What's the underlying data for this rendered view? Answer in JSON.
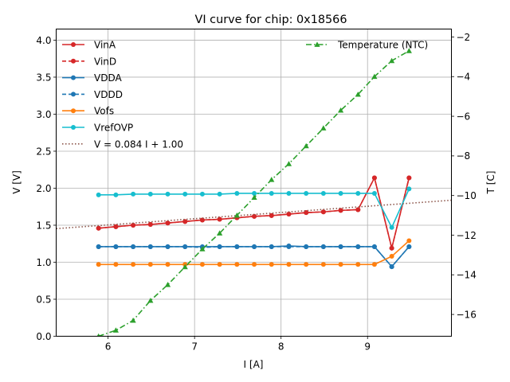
{
  "chart_data": {
    "type": "line",
    "title": "VI curve for chip: 0x18566",
    "xlabel": "I [A]",
    "ylabel": "V [V]",
    "y2label": "T [C]",
    "xlim": [
      5.4,
      9.97
    ],
    "ylim": [
      0.0,
      4.15
    ],
    "y2lim": [
      -17.1,
      -1.6
    ],
    "xticks": [
      6,
      7,
      8,
      9
    ],
    "yticks": [
      0.0,
      0.5,
      1.0,
      1.5,
      2.0,
      2.5,
      3.0,
      3.5,
      4.0
    ],
    "y2ticks": [
      -16,
      -14,
      -12,
      -10,
      -8,
      -6,
      -4,
      -2
    ],
    "grid": true,
    "x": [
      5.89,
      6.09,
      6.29,
      6.49,
      6.69,
      6.89,
      7.09,
      7.29,
      7.49,
      7.69,
      7.89,
      8.09,
      8.29,
      8.49,
      8.69,
      8.89,
      9.08,
      9.28,
      9.48
    ],
    "series": [
      {
        "name": "VinA",
        "axis": "left",
        "color": "#d62728",
        "linestyle": "solid",
        "marker": "circle",
        "values": [
          1.46,
          1.48,
          1.5,
          1.51,
          1.53,
          1.55,
          1.57,
          1.58,
          1.6,
          1.62,
          1.63,
          1.65,
          1.67,
          1.68,
          1.7,
          1.71,
          2.14,
          1.19,
          2.14
        ]
      },
      {
        "name": "VinD",
        "axis": "left",
        "color": "#d62728",
        "linestyle": "dashed",
        "marker": "circle",
        "values": [
          1.46,
          1.48,
          1.5,
          1.51,
          1.53,
          1.55,
          1.57,
          1.58,
          1.6,
          1.62,
          1.63,
          1.65,
          1.67,
          1.68,
          1.7,
          1.71,
          2.14,
          1.19,
          2.14
        ]
      },
      {
        "name": "VDDA",
        "axis": "left",
        "color": "#1f77b4",
        "linestyle": "solid",
        "marker": "circle",
        "values": [
          1.21,
          1.21,
          1.21,
          1.21,
          1.21,
          1.21,
          1.21,
          1.21,
          1.21,
          1.21,
          1.21,
          1.22,
          1.21,
          1.21,
          1.21,
          1.21,
          1.21,
          0.94,
          1.21
        ]
      },
      {
        "name": "VDDD",
        "axis": "left",
        "color": "#1f77b4",
        "linestyle": "dashed",
        "marker": "circle",
        "values": [
          1.21,
          1.21,
          1.21,
          1.21,
          1.21,
          1.21,
          1.2,
          1.21,
          1.21,
          1.21,
          1.21,
          1.21,
          1.21,
          1.21,
          1.21,
          1.21,
          1.21,
          0.94,
          1.21
        ]
      },
      {
        "name": "Vofs",
        "axis": "left",
        "color": "#ff7f0e",
        "linestyle": "solid",
        "marker": "circle",
        "values": [
          0.97,
          0.97,
          0.97,
          0.97,
          0.97,
          0.97,
          0.97,
          0.97,
          0.97,
          0.97,
          0.97,
          0.97,
          0.97,
          0.97,
          0.97,
          0.97,
          0.97,
          1.08,
          1.29
        ]
      },
      {
        "name": "VrefOVP",
        "axis": "left",
        "color": "#17becf",
        "linestyle": "solid",
        "marker": "circle",
        "values": [
          1.91,
          1.91,
          1.92,
          1.92,
          1.92,
          1.92,
          1.92,
          1.92,
          1.93,
          1.93,
          1.93,
          1.93,
          1.93,
          1.93,
          1.93,
          1.93,
          1.93,
          1.47,
          1.99
        ]
      },
      {
        "name": "V = 0.084 I + 1.00",
        "axis": "left",
        "color": "#8c564b",
        "linestyle": "dotted",
        "marker": "none",
        "fit": {
          "slope": 0.084,
          "intercept": 1.0
        }
      },
      {
        "name": "Temperature (NTC)",
        "axis": "right",
        "color": "#2ca02c",
        "linestyle": "dashdot",
        "marker": "triangle",
        "values": [
          -17.1,
          -16.8,
          -16.3,
          -15.3,
          -14.5,
          -13.6,
          -12.7,
          -11.9,
          -11.0,
          -10.1,
          -9.2,
          -8.4,
          -7.5,
          -6.6,
          -5.7,
          -4.9,
          -4.0,
          -3.2,
          -2.7
        ]
      }
    ],
    "legend_left": "upper-left",
    "legend_right": "upper-right"
  }
}
